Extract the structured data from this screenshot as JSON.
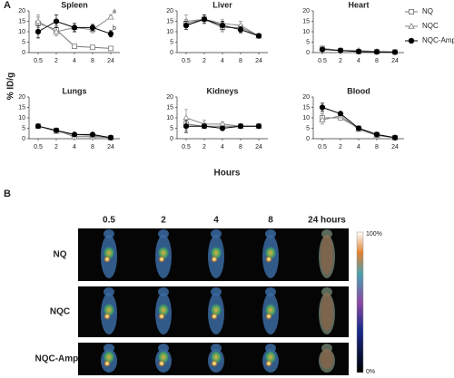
{
  "figure": {
    "panel_a": "A",
    "y_label": "% ID/g",
    "x_label": "Hours",
    "panel_b": "B",
    "columns": [
      "0.5",
      "2",
      "4",
      "8",
      "24 hours"
    ],
    "rows": [
      "NQ",
      "NQC",
      "NQC-AmpB"
    ],
    "scale_max": "100%",
    "scale_min": "0%"
  },
  "chart_data": [
    {
      "type": "line",
      "title": "Spleen",
      "categories": [
        "0.5",
        "2",
        "4",
        "8",
        "24"
      ],
      "ylim": [
        0,
        20
      ],
      "yticks": [
        0,
        5,
        10,
        15,
        20
      ],
      "series": [
        {
          "name": "NQ",
          "color": "#777777",
          "marker": "square-open",
          "values": [
            14,
            11,
            3,
            2.5,
            2
          ],
          "errors": [
            3,
            2,
            0.5,
            0.5,
            0.5
          ]
        },
        {
          "name": "NQC",
          "color": "#888888",
          "marker": "triangle-open",
          "values": [
            15,
            10,
            12,
            11,
            17
          ],
          "errors": [
            3,
            2,
            2,
            1.5,
            1
          ],
          "note": "a"
        },
        {
          "name": "NQC-AmpB",
          "color": "#000000",
          "marker": "circle-filled",
          "values": [
            10,
            15,
            12,
            12,
            9
          ],
          "errors": [
            3,
            3,
            2,
            1.5,
            1.5
          ],
          "note": "b"
        }
      ]
    },
    {
      "type": "line",
      "title": "Liver",
      "categories": [
        "0.5",
        "2",
        "4",
        "8",
        "24"
      ],
      "ylim": [
        0,
        20
      ],
      "yticks": [
        0,
        5,
        10,
        15,
        20
      ],
      "series": [
        {
          "name": "NQ",
          "color": "#777777",
          "marker": "square-open",
          "values": [
            14,
            16,
            12,
            12,
            8
          ],
          "errors": [
            2,
            2,
            2,
            1.5,
            1
          ]
        },
        {
          "name": "NQC",
          "color": "#888888",
          "marker": "triangle-open",
          "values": [
            15,
            16,
            14,
            13,
            8
          ],
          "errors": [
            3,
            2,
            2,
            2,
            1
          ]
        },
        {
          "name": "NQC-AmpB",
          "color": "#000000",
          "marker": "circle-filled",
          "values": [
            13,
            16,
            13,
            11,
            8
          ],
          "errors": [
            2,
            2,
            2,
            1.5,
            1
          ]
        }
      ]
    },
    {
      "type": "line",
      "title": "Heart",
      "categories": [
        "0.5",
        "2",
        "4",
        "8",
        "24"
      ],
      "ylim": [
        0,
        20
      ],
      "yticks": [
        0,
        5,
        10,
        15,
        20
      ],
      "series": [
        {
          "name": "NQ",
          "color": "#777777",
          "marker": "square-open",
          "values": [
            2,
            1,
            0.5,
            0.5,
            0.3
          ],
          "errors": [
            0.5,
            0.5,
            0.3,
            0.3,
            0.2
          ]
        },
        {
          "name": "NQC",
          "color": "#888888",
          "marker": "triangle-open",
          "values": [
            2,
            1,
            1,
            0.5,
            0.3
          ],
          "errors": [
            0.5,
            0.5,
            0.3,
            0.3,
            0.2
          ]
        },
        {
          "name": "NQC-AmpB",
          "color": "#000000",
          "marker": "circle-filled",
          "values": [
            1.5,
            1,
            0.5,
            0.3,
            0.2
          ],
          "errors": [
            0.5,
            0.3,
            0.3,
            0.2,
            0.1
          ]
        }
      ]
    },
    {
      "type": "line",
      "title": "Lungs",
      "categories": [
        "0.5",
        "2",
        "4",
        "8",
        "24"
      ],
      "ylim": [
        0,
        20
      ],
      "yticks": [
        0,
        5,
        10,
        15,
        20
      ],
      "series": [
        {
          "name": "NQ",
          "color": "#777777",
          "marker": "square-open",
          "values": [
            6,
            4,
            1,
            1,
            0.5
          ],
          "errors": [
            0.5,
            1,
            0.5,
            0.5,
            0.3
          ]
        },
        {
          "name": "NQC",
          "color": "#888888",
          "marker": "triangle-open",
          "values": [
            6,
            3.5,
            2,
            1.5,
            0.5
          ],
          "errors": [
            0.5,
            1,
            0.5,
            0.5,
            0.3
          ]
        },
        {
          "name": "NQC-AmpB",
          "color": "#000000",
          "marker": "circle-filled",
          "values": [
            6,
            4,
            2,
            2,
            0.5
          ],
          "errors": [
            0.5,
            0.8,
            0.5,
            0.5,
            0.3
          ]
        }
      ]
    },
    {
      "type": "line",
      "title": "Kidneys",
      "categories": [
        "0.5",
        "2",
        "4",
        "8",
        "24"
      ],
      "ylim": [
        0,
        20
      ],
      "yticks": [
        0,
        5,
        10,
        15,
        20
      ],
      "series": [
        {
          "name": "NQ",
          "color": "#777777",
          "marker": "square-open",
          "values": [
            7,
            6,
            6,
            6,
            6
          ],
          "errors": [
            3,
            1,
            1,
            1,
            1
          ]
        },
        {
          "name": "NQC",
          "color": "#888888",
          "marker": "triangle-open",
          "values": [
            10,
            7,
            7,
            6,
            6
          ],
          "errors": [
            4,
            2,
            1,
            1,
            1
          ]
        },
        {
          "name": "NQC-AmpB",
          "color": "#000000",
          "marker": "circle-filled",
          "values": [
            6,
            6,
            5,
            6,
            6
          ],
          "errors": [
            3,
            1,
            1,
            1,
            1
          ]
        }
      ]
    },
    {
      "type": "line",
      "title": "Blood",
      "categories": [
        "0.5",
        "2",
        "4",
        "8",
        "24"
      ],
      "ylim": [
        0,
        20
      ],
      "yticks": [
        0,
        5,
        10,
        15,
        20
      ],
      "series": [
        {
          "name": "NQ",
          "color": "#777777",
          "marker": "square-open",
          "values": [
            10,
            10,
            5,
            2,
            0.5
          ],
          "errors": [
            2,
            1,
            1,
            0.5,
            0.3
          ]
        },
        {
          "name": "NQC",
          "color": "#888888",
          "marker": "triangle-open",
          "values": [
            9,
            11,
            4.5,
            1.5,
            0.5
          ],
          "errors": [
            2,
            1,
            1,
            0.5,
            0.3
          ]
        },
        {
          "name": "NQC-AmpB",
          "color": "#000000",
          "marker": "circle-filled",
          "values": [
            15,
            12,
            5,
            2,
            0.5
          ],
          "errors": [
            2,
            1,
            1,
            0.5,
            0.3
          ]
        }
      ]
    }
  ]
}
